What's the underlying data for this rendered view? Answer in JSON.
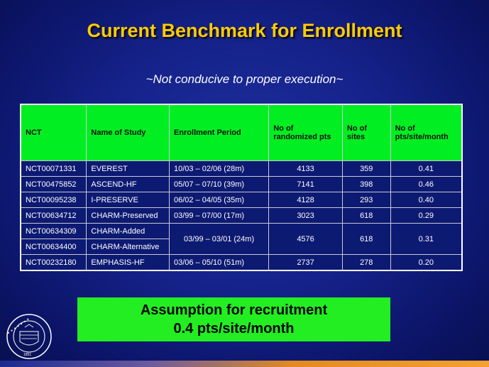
{
  "title": "Current Benchmark for Enrollment",
  "subtitle": "~Not conducive to proper execution~",
  "table": {
    "headers": [
      "NCT",
      "Name of Study",
      "Enrollment Period",
      "No of randomized pts",
      "No of sites",
      "No of pts/site/month"
    ],
    "rows": [
      {
        "nct": "NCT00071331",
        "name": "EVEREST",
        "period": "10/03 – 02/06 (28m)",
        "pts": "4133",
        "sites": "359",
        "rate": "0.41"
      },
      {
        "nct": "NCT00475852",
        "name": "ASCEND-HF",
        "period": "05/07 – 07/10 (39m)",
        "pts": "7141",
        "sites": "398",
        "rate": "0.46"
      },
      {
        "nct": "NCT00095238",
        "name": "I-PRESERVE",
        "period": "06/02 – 04/05 (35m)",
        "pts": "4128",
        "sites": "293",
        "rate": "0.40"
      },
      {
        "nct": "NCT00634712",
        "name": "CHARM-Preserved",
        "period": "03/99 – 07/00 (17m)",
        "pts": "3023",
        "sites": "618",
        "rate": "0.29"
      },
      {
        "nct": "NCT00634309",
        "name": "CHARM-Added",
        "period": "03/99 – 03/01 (24m)",
        "pts": "4576",
        "sites": "618",
        "rate": "0.31"
      },
      {
        "nct": "NCT00634400",
        "name": "CHARM-Alternative"
      },
      {
        "nct": "NCT00232180",
        "name": "EMPHASIS-HF",
        "period": "03/06 – 05/10 (51m)",
        "pts": "2737",
        "sites": "278",
        "rate": "0.20"
      }
    ]
  },
  "assumption": {
    "line1": "Assumption for recruitment",
    "line2": "0.4 pts/site/month"
  },
  "seal": {
    "text": "NORTHWESTERN UNIVERSITY",
    "year": "1851"
  }
}
